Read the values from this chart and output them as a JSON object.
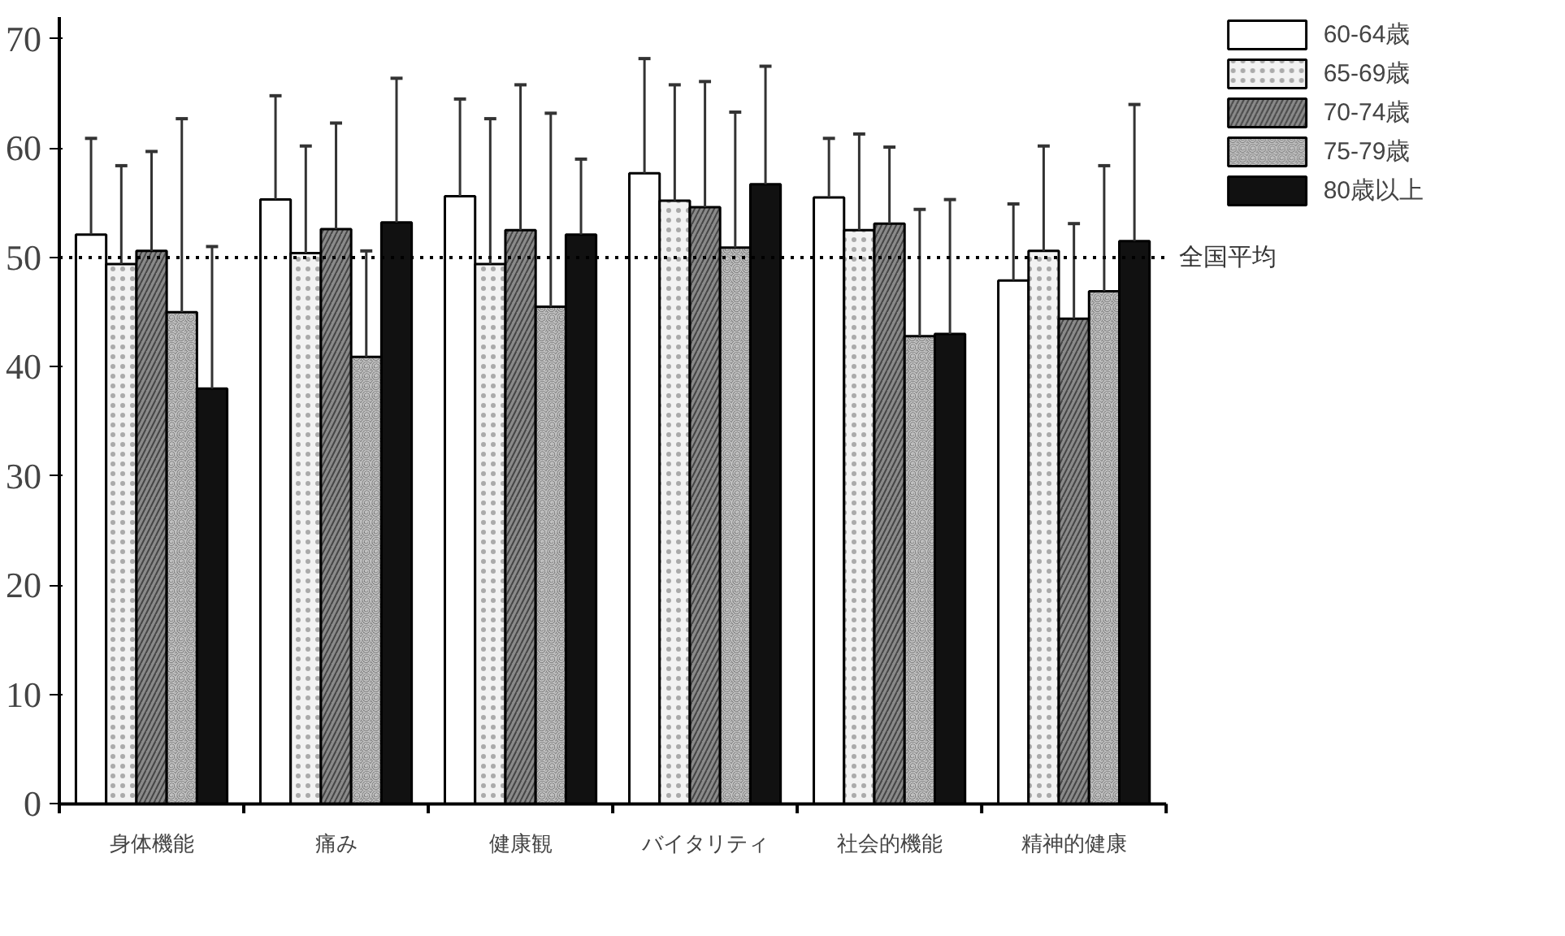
{
  "chart_data": {
    "type": "bar",
    "categories": [
      "身体機能",
      "痛み",
      "健康観",
      "バイタリティ",
      "社会的機能",
      "精神的健康"
    ],
    "series": [
      {
        "name": "60-64歳",
        "color": "#ffffff",
        "values": [
          52.1,
          55.3,
          55.6,
          57.7,
          55.5,
          47.9
        ],
        "errors": [
          [
            52.1,
            60.9
          ],
          [
            55.3,
            64.8
          ],
          [
            55.6,
            64.5
          ],
          [
            57.7,
            68.2
          ],
          [
            55.5,
            60.9
          ],
          [
            47.9,
            54.9
          ]
        ]
      },
      {
        "name": "65-69歳",
        "color": "#f2f2f2",
        "values": [
          49.4,
          50.4,
          49.4,
          55.2,
          52.5,
          50.6
        ],
        "errors": [
          [
            49.4,
            58.4
          ],
          [
            50.4,
            60.2
          ],
          [
            49.4,
            62.7
          ],
          [
            55.2,
            65.8
          ],
          [
            52.5,
            61.3
          ],
          [
            50.6,
            60.2
          ]
        ]
      },
      {
        "name": "70-74歳",
        "color": "#8a8a8a",
        "values": [
          50.6,
          52.6,
          52.5,
          54.6,
          53.1,
          44.4
        ],
        "errors": [
          [
            50.6,
            59.7
          ],
          [
            52.6,
            62.3
          ],
          [
            52.5,
            65.8
          ],
          [
            54.6,
            66.1
          ],
          [
            53.1,
            60.1
          ],
          [
            44.4,
            53.1
          ]
        ]
      },
      {
        "name": "75-79歳",
        "color": "#505050",
        "values": [
          45.0,
          40.9,
          45.5,
          50.9,
          42.8,
          46.9
        ],
        "errors": [
          [
            45.0,
            62.7
          ],
          [
            40.9,
            50.6
          ],
          [
            45.5,
            63.2
          ],
          [
            50.9,
            63.3
          ],
          [
            42.8,
            54.4
          ],
          [
            46.9,
            58.4
          ]
        ]
      },
      {
        "name": "80歳以上",
        "color": "#111111",
        "values": [
          38.0,
          53.2,
          52.1,
          56.7,
          43.0,
          51.5
        ],
        "errors": [
          [
            38.0,
            51.0
          ],
          [
            53.2,
            66.4
          ],
          [
            52.1,
            59.0
          ],
          [
            56.7,
            67.5
          ],
          [
            43.0,
            55.3
          ],
          [
            51.5,
            64.0
          ]
        ]
      }
    ],
    "ylim": [
      0,
      72
    ],
    "yticks": [
      0,
      10,
      20,
      30,
      40,
      50,
      60,
      70
    ],
    "grid": false,
    "legend": "top right",
    "ref_lines": [
      {
        "axis": "y",
        "value": 50,
        "label": "全国平均",
        "color": "#000000",
        "line_style": "dotted"
      }
    ]
  }
}
